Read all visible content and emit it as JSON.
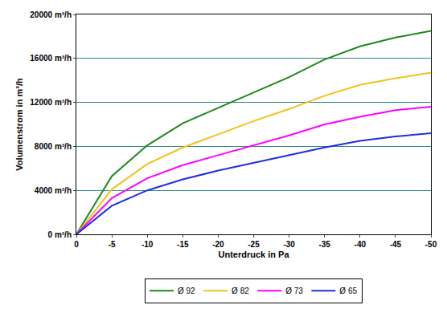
{
  "chart_data": {
    "type": "line",
    "x_label": "Unterdruck in Pa",
    "y_label": "Volumenstrom in m³/h",
    "x": [
      0,
      -5,
      -10,
      -15,
      -20,
      -25,
      -30,
      -35,
      -40,
      -45,
      -50
    ],
    "series": [
      {
        "name": "Ø 92",
        "color": "#1a8a1a",
        "values": [
          0,
          5300,
          8100,
          10100,
          11500,
          12900,
          14300,
          15900,
          17100,
          17900,
          18500
        ]
      },
      {
        "name": "Ø 82",
        "color": "#f2c21a",
        "values": [
          0,
          4100,
          6400,
          7900,
          9100,
          10300,
          11400,
          12600,
          13600,
          14200,
          14700
        ]
      },
      {
        "name": "Ø 73",
        "color": "#ff00ff",
        "values": [
          0,
          3300,
          5100,
          6300,
          7200,
          8100,
          9000,
          10000,
          10700,
          11300,
          11600
        ]
      },
      {
        "name": "Ø 65",
        "color": "#1f2fe0",
        "values": [
          0,
          2600,
          4000,
          5000,
          5800,
          6500,
          7200,
          7900,
          8500,
          8900,
          9200
        ]
      }
    ],
    "xlim": [
      0,
      -50
    ],
    "xticks": [
      0,
      -5,
      -10,
      -15,
      -20,
      -25,
      -30,
      -35,
      -40,
      -45,
      -50
    ],
    "ylim": [
      0,
      20000
    ],
    "yticks": [
      {
        "value": 0,
        "label": "0 m³/h"
      },
      {
        "value": 4000,
        "label": "4000 m³/h"
      },
      {
        "value": 8000,
        "label": "8000 m³/h"
      },
      {
        "value": 12000,
        "label": "12000 m³/h"
      },
      {
        "value": 16000,
        "label": "16000 m³/h"
      },
      {
        "value": 20000,
        "label": "20000 m³/h"
      }
    ],
    "grid": true,
    "legend": "bottom"
  }
}
